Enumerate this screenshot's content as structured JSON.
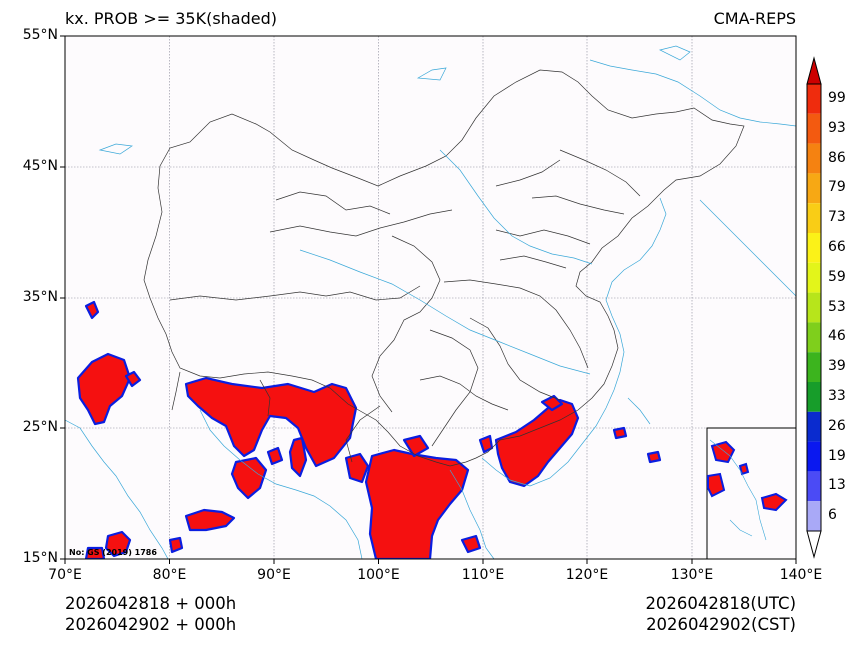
{
  "header": {
    "title_left": "kx. PROB >= 35K(shaded)",
    "title_right": "CMA-REPS"
  },
  "footer": {
    "left_line1": "2026042818  +  000h",
    "left_line2": "2026042902  +  000h",
    "right_line1": "2026042818(UTC)",
    "right_line2": "2026042902(CST)"
  },
  "map": {
    "note": "No: GS (2019) 1786",
    "lat_labels": [
      "55°N",
      "45°N",
      "35°N",
      "25°N",
      "15°N"
    ],
    "lon_labels": [
      "70°E",
      "80°E",
      "90°E",
      "100°E",
      "110°E",
      "120°E",
      "130°E",
      "140°E"
    ],
    "colors": {
      "background": "#fdfbfd",
      "border": "#333333",
      "river": "#3aa8d8",
      "prob_fill": "#f51010",
      "prob_edge_blue": "#0a1ee0",
      "prob_edge_yellow": "#f4e51a",
      "grid": "#8a8a9a"
    }
  },
  "colorbar": {
    "labels": [
      "99",
      "93",
      "86",
      "79",
      "73",
      "66",
      "59",
      "53",
      "46",
      "39",
      "33",
      "26",
      "19",
      "13",
      "6"
    ],
    "colors": [
      "#ef2c0d",
      "#f35a10",
      "#f58211",
      "#f7a814",
      "#f9cd16",
      "#fbf218",
      "#e3f51a",
      "#b7e51b",
      "#7fcf1c",
      "#3cb41e",
      "#179d2a",
      "#0a2bcf",
      "#0a18f0",
      "#4b4bf5",
      "#a9a9f7"
    ],
    "top_arrow_color": "#cc0000",
    "bottom_arrow_color": "#ffffff"
  }
}
